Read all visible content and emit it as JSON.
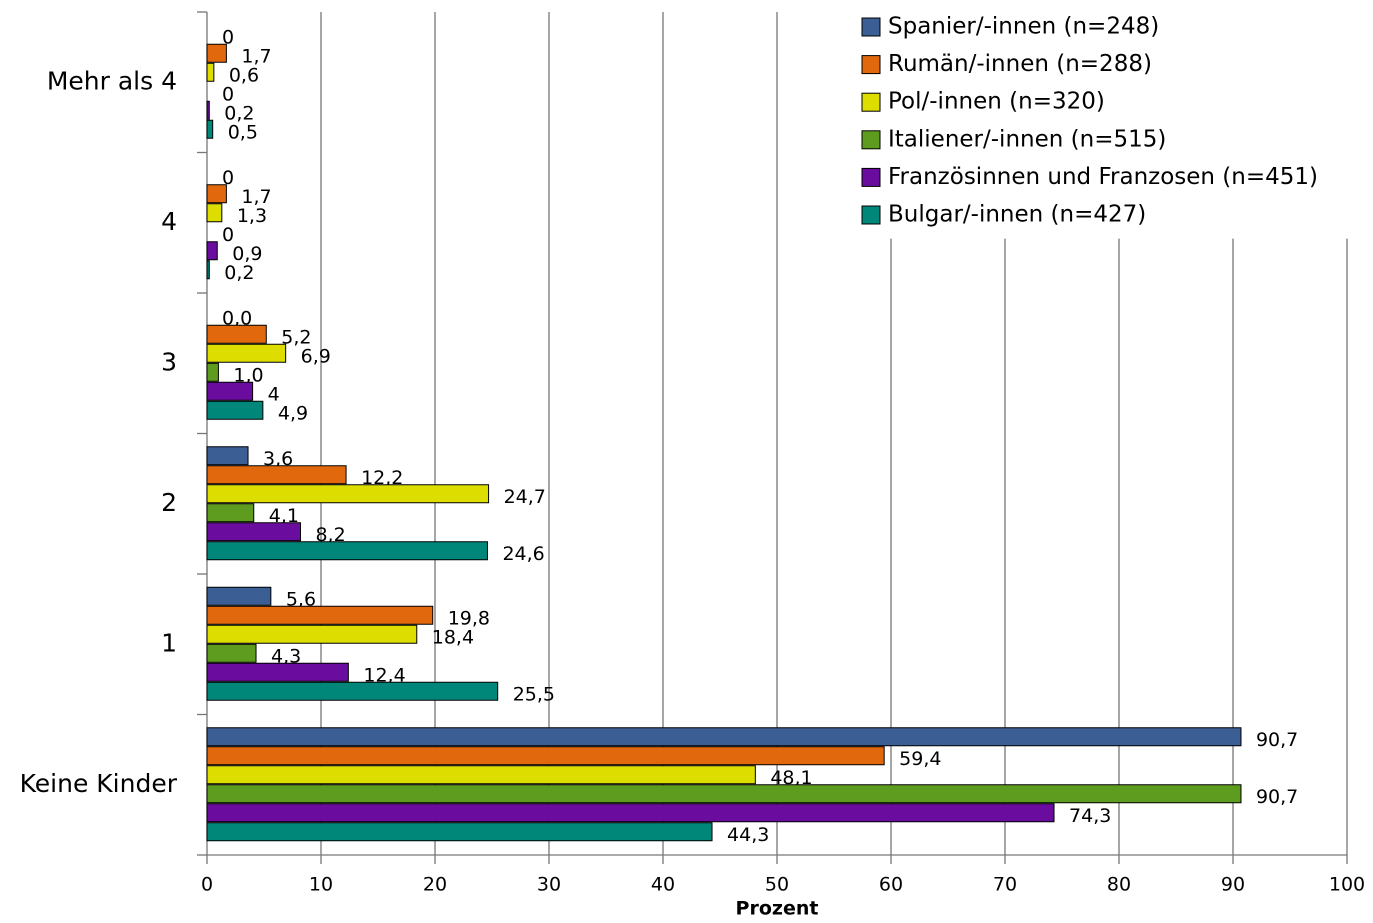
{
  "chart_data": {
    "type": "bar",
    "orientation": "horizontal",
    "x_label": "Prozent",
    "categories": [
      "Mehr als 4",
      "4",
      "3",
      "2",
      "1",
      "Keine Kinder"
    ],
    "series": [
      {
        "name": "Spanier/-innen (n=248)",
        "color": "#3b5e95",
        "values": [
          0,
          0,
          0.0,
          3.6,
          5.6,
          90.7
        ],
        "value_labels": [
          "0",
          "0",
          "0,0",
          "3,6",
          "5,6",
          "90,7"
        ]
      },
      {
        "name": "Rumän/-innen (n=288)",
        "color": "#e2680e",
        "values": [
          1.7,
          1.7,
          5.2,
          12.2,
          19.8,
          59.4
        ],
        "value_labels": [
          "1,7",
          "1,7",
          "5,2",
          "12,2",
          "19,8",
          "59,4"
        ]
      },
      {
        "name": "Pol/-innen (n=320)",
        "color": "#dddd00",
        "values": [
          0.6,
          1.3,
          6.9,
          24.7,
          18.4,
          48.1
        ],
        "value_labels": [
          "0,6",
          "1,3",
          "6,9",
          "24,7",
          "18,4",
          "48,1"
        ]
      },
      {
        "name": "Italiener/-innen (n=515)",
        "color": "#5e9c20",
        "values": [
          0,
          0,
          1.0,
          4.1,
          4.3,
          90.7
        ],
        "value_labels": [
          "0",
          "0",
          "1,0",
          "4,1",
          "4,3",
          "90,7"
        ]
      },
      {
        "name": "Französinnen und Franzosen (n=451)",
        "color": "#6a0d9e",
        "values": [
          0.2,
          0.9,
          4,
          8.2,
          12.4,
          74.3
        ],
        "value_labels": [
          "0,2",
          "0,9",
          "4",
          "8,2",
          "12,4",
          "74,3"
        ]
      },
      {
        "name": "Bulgar/-innen (n=427)",
        "color": "#00877a",
        "values": [
          0.5,
          0.2,
          4.9,
          24.6,
          25.5,
          44.3
        ],
        "value_labels": [
          "0,5",
          "0,2",
          "4,9",
          "24,6",
          "25,5",
          "44,3"
        ]
      }
    ],
    "xlim": [
      0,
      100
    ],
    "xticks": [
      0,
      10,
      20,
      30,
      40,
      50,
      60,
      70,
      80,
      90,
      100
    ],
    "grid": true,
    "legend": "upper right"
  }
}
